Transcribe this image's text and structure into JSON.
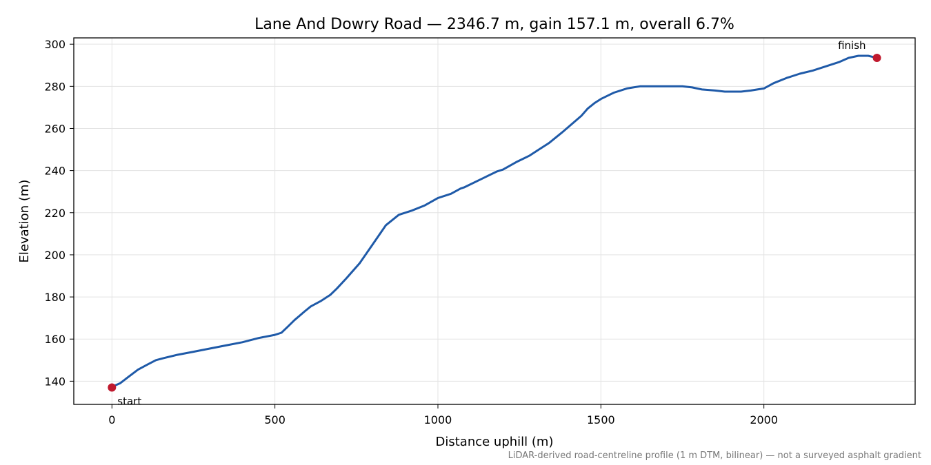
{
  "chart_data": {
    "type": "line",
    "title": "Lane And Dowry Road — 2346.7 m, gain 157.1 m, overall 6.7%",
    "xlabel": "Distance uphill (m)",
    "ylabel": "Elevation (m)",
    "xlim": [
      -117,
      2464
    ],
    "ylim": [
      129,
      303
    ],
    "xticks": [
      0,
      500,
      1000,
      1500,
      2000
    ],
    "yticks": [
      140,
      160,
      180,
      200,
      220,
      240,
      260,
      280,
      300
    ],
    "grid": true,
    "footnote": "LiDAR-derived road-centreline profile (1 m DTM, bilinear) — not a surveyed asphalt gradient",
    "colors": {
      "line": "#1f5aa8",
      "marker": "#c0192e"
    },
    "series": [
      {
        "x": [
          0,
          10,
          25,
          50,
          80,
          110,
          135,
          160,
          200,
          250,
          300,
          350,
          400,
          450,
          500,
          520,
          540,
          560,
          575,
          590,
          610,
          640,
          670,
          690,
          720,
          760,
          800,
          840,
          880,
          920,
          960,
          1000,
          1040,
          1070,
          1080,
          1100,
          1140,
          1180,
          1200,
          1240,
          1280,
          1310,
          1340,
          1380,
          1410,
          1440,
          1460,
          1480,
          1500,
          1540,
          1580,
          1620,
          1650,
          1700,
          1750,
          1780,
          1810,
          1850,
          1880,
          1930,
          1960,
          1980,
          2000,
          2030,
          2070,
          2110,
          2150,
          2190,
          2230,
          2260,
          2290,
          2320,
          2346.7
        ],
        "y": [
          137,
          138,
          139,
          142,
          145.5,
          148,
          150,
          151,
          152.5,
          154,
          155.5,
          157,
          158.5,
          160.5,
          162,
          163,
          166,
          169,
          171,
          173,
          175.5,
          178,
          181,
          184,
          189,
          196,
          205,
          214,
          219,
          221,
          223.5,
          227,
          229,
          231.5,
          232,
          233.5,
          236.5,
          239.5,
          240.5,
          244,
          247,
          250,
          253,
          258,
          262,
          266,
          269.5,
          272,
          274,
          277,
          279,
          280,
          280,
          280,
          280,
          279.5,
          278.5,
          278,
          277.5,
          277.5,
          278,
          278.5,
          279,
          281.5,
          284,
          286,
          287.5,
          289.5,
          291.5,
          293.5,
          294.5,
          294.5,
          293.5
        ]
      }
    ],
    "annotations": [
      {
        "label": "start",
        "x": 0,
        "y": 137
      },
      {
        "label": "finish",
        "x": 2346.7,
        "y": 293.5
      }
    ]
  }
}
